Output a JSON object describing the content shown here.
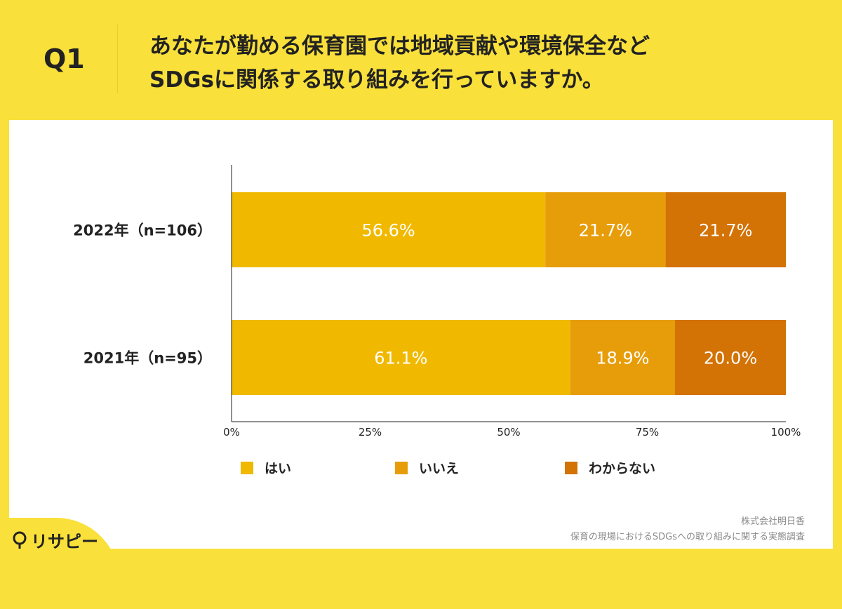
{
  "header": {
    "q_label": "Q1",
    "question_line1": "あなたが勤める保育園では地域貢献や環境保全など",
    "question_line2": "SDGsに関係する取り組みを行っていますか。"
  },
  "chart_data": {
    "type": "bar",
    "orientation": "horizontal",
    "stacked": true,
    "categories": [
      "2022年（n=106）",
      "2021年（n=95）"
    ],
    "series": [
      {
        "name": "はい",
        "values": [
          56.6,
          61.1
        ],
        "labels": [
          "56.6%",
          "61.1%"
        ],
        "color": "#f0b900"
      },
      {
        "name": "いいえ",
        "values": [
          21.7,
          18.9
        ],
        "labels": [
          "21.7%",
          "18.9%"
        ],
        "color": "#e79d0a"
      },
      {
        "name": "わからない",
        "values": [
          21.7,
          20.0
        ],
        "labels": [
          "21.7%",
          "20.0%"
        ],
        "color": "#d37205"
      }
    ],
    "xlim": [
      0,
      100
    ],
    "x_ticks": [
      "0%",
      "25%",
      "50%",
      "75%",
      "100%"
    ],
    "grid": false,
    "legend_position": "bottom"
  },
  "legend": {
    "items": [
      {
        "label": "はい",
        "color": "#f0b900"
      },
      {
        "label": "いいえ",
        "color": "#e79d0a"
      },
      {
        "label": "わからない",
        "color": "#d37205"
      }
    ]
  },
  "source": {
    "line1": "株式会社明日香",
    "line2": "保育の現場におけるSDGsへの取り組みに関する実態調査"
  },
  "logo": {
    "text": "リサピー",
    "icon": "pin-icon"
  }
}
